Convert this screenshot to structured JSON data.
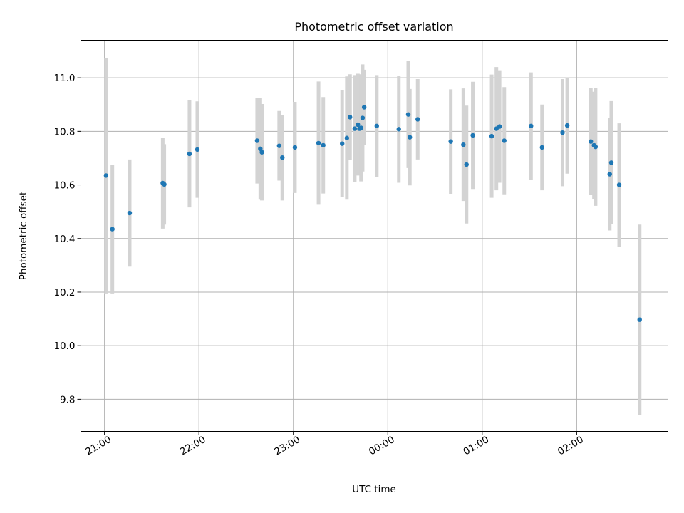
{
  "chart_data": {
    "type": "scatter",
    "title": "Photometric offset variation",
    "xlabel": "UTC time",
    "ylabel": "Photometric offset",
    "x_ticks": [
      "21:00",
      "22:00",
      "23:00",
      "00:00",
      "01:00",
      "02:00"
    ],
    "y_ticks": [
      "9.8",
      "10.0",
      "10.2",
      "10.4",
      "10.6",
      "10.8",
      "11.0"
    ],
    "xlim": [
      "20:45",
      "02:58"
    ],
    "ylim": [
      9.68,
      11.14
    ],
    "grid": true,
    "legend": "none",
    "colors": {
      "marker": "#1f77b4",
      "errorbar": "#d3d3d3",
      "grid": "#b0b0b0"
    },
    "series": [
      {
        "x": [
          "21:01",
          "21:05",
          "21:16",
          "21:37",
          "21:38",
          "21:54",
          "21:59",
          "22:37",
          "22:39",
          "22:40",
          "22:51",
          "22:53",
          "23:01",
          "23:16",
          "23:19",
          "23:31",
          "23:34",
          "23:36",
          "23:39",
          "23:41",
          "23:42",
          "23:43",
          "23:44",
          "23:45",
          "23:53",
          "00:07",
          "00:13",
          "00:14",
          "00:19",
          "00:40",
          "00:48",
          "00:50",
          "00:54",
          "01:06",
          "01:09",
          "01:11",
          "01:14",
          "01:31",
          "01:38",
          "01:51",
          "01:54",
          "02:09",
          "02:11",
          "02:12",
          "02:21",
          "02:22",
          "02:27",
          "02:40"
        ],
        "y": [
          10.635,
          10.435,
          10.495,
          10.607,
          10.602,
          10.716,
          10.732,
          10.765,
          10.735,
          10.722,
          10.746,
          10.702,
          10.74,
          10.756,
          10.748,
          10.754,
          10.775,
          10.853,
          10.81,
          10.825,
          10.81,
          10.813,
          10.85,
          10.89,
          10.82,
          10.808,
          10.863,
          10.778,
          10.845,
          10.762,
          10.75,
          10.676,
          10.785,
          10.782,
          10.81,
          10.818,
          10.765,
          10.82,
          10.74,
          10.795,
          10.822,
          10.762,
          10.748,
          10.742,
          10.64,
          10.683,
          10.6,
          10.097
        ],
        "yerr": [
          0.44,
          0.24,
          0.2,
          0.17,
          0.15,
          0.2,
          0.18,
          0.16,
          0.19,
          0.18,
          0.13,
          0.16,
          0.17,
          0.23,
          0.18,
          0.2,
          0.23,
          0.16,
          0.2,
          0.19,
          0.16,
          0.2,
          0.2,
          0.14,
          0.19,
          0.2,
          0.2,
          0.18,
          0.15,
          0.195,
          0.21,
          0.22,
          0.2,
          0.23,
          0.23,
          0.21,
          0.2,
          0.2,
          0.16,
          0.2,
          0.18,
          0.2,
          0.2,
          0.22,
          0.21,
          0.23,
          0.23,
          0.355
        ]
      }
    ]
  }
}
